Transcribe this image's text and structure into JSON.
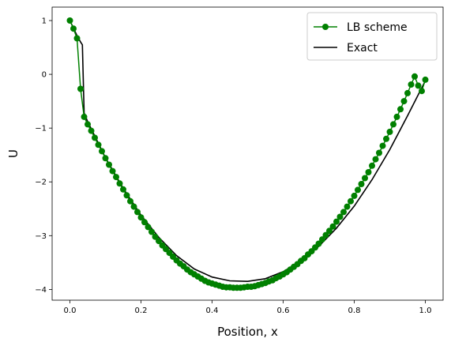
{
  "chart_data": {
    "type": "line",
    "xlabel": "Position, x",
    "ylabel": "U",
    "xlim": [
      -0.05,
      1.05
    ],
    "ylim": [
      -4.2,
      1.25
    ],
    "xticks": [
      0.0,
      0.2,
      0.4,
      0.6,
      0.8,
      1.0
    ],
    "xtick_labels": [
      "0.0",
      "0.2",
      "0.4",
      "0.6",
      "0.8",
      "1.0"
    ],
    "yticks": [
      1,
      0,
      -1,
      -2,
      -3,
      -4
    ],
    "ytick_labels": [
      "1",
      "0",
      "−1",
      "−2",
      "−3",
      "−4"
    ],
    "grid": false,
    "legend_position": "top-right",
    "series": [
      {
        "name": "LB scheme",
        "style": "line-with-circle-markers",
        "color": "#008000",
        "x": [
          0.0,
          0.01,
          0.02,
          0.03,
          0.04,
          0.05,
          0.06,
          0.07,
          0.08,
          0.09,
          0.1,
          0.11,
          0.12,
          0.13,
          0.14,
          0.15,
          0.16,
          0.17,
          0.18,
          0.19,
          0.2,
          0.21,
          0.22,
          0.23,
          0.24,
          0.25,
          0.26,
          0.27,
          0.28,
          0.29,
          0.3,
          0.31,
          0.32,
          0.33,
          0.34,
          0.35,
          0.36,
          0.37,
          0.38,
          0.39,
          0.4,
          0.41,
          0.42,
          0.43,
          0.44,
          0.45,
          0.46,
          0.47,
          0.48,
          0.49,
          0.5,
          0.51,
          0.52,
          0.53,
          0.54,
          0.55,
          0.56,
          0.57,
          0.58,
          0.59,
          0.6,
          0.61,
          0.62,
          0.63,
          0.64,
          0.65,
          0.66,
          0.67,
          0.68,
          0.69,
          0.7,
          0.71,
          0.72,
          0.73,
          0.74,
          0.75,
          0.76,
          0.77,
          0.78,
          0.79,
          0.8,
          0.81,
          0.82,
          0.83,
          0.84,
          0.85,
          0.86,
          0.87,
          0.88,
          0.89,
          0.9,
          0.91,
          0.92,
          0.93,
          0.94,
          0.95,
          0.96,
          0.97,
          0.98,
          0.99,
          1.0
        ],
        "y": [
          1.0,
          0.85,
          0.67,
          -0.27,
          -0.79,
          -0.93,
          -1.05,
          -1.18,
          -1.31,
          -1.43,
          -1.56,
          -1.68,
          -1.8,
          -1.91,
          -2.03,
          -2.14,
          -2.25,
          -2.36,
          -2.46,
          -2.56,
          -2.66,
          -2.75,
          -2.84,
          -2.93,
          -3.02,
          -3.1,
          -3.18,
          -3.25,
          -3.32,
          -3.39,
          -3.46,
          -3.52,
          -3.57,
          -3.63,
          -3.68,
          -3.72,
          -3.76,
          -3.8,
          -3.84,
          -3.87,
          -3.89,
          -3.91,
          -3.93,
          -3.95,
          -3.96,
          -3.96,
          -3.97,
          -3.97,
          -3.97,
          -3.96,
          -3.95,
          -3.95,
          -3.94,
          -3.92,
          -3.9,
          -3.88,
          -3.85,
          -3.83,
          -3.79,
          -3.76,
          -3.72,
          -3.68,
          -3.63,
          -3.58,
          -3.53,
          -3.47,
          -3.42,
          -3.35,
          -3.29,
          -3.22,
          -3.15,
          -3.07,
          -2.99,
          -2.91,
          -2.83,
          -2.74,
          -2.65,
          -2.56,
          -2.46,
          -2.36,
          -2.26,
          -2.15,
          -2.04,
          -1.93,
          -1.82,
          -1.7,
          -1.58,
          -1.46,
          -1.33,
          -1.2,
          -1.07,
          -0.93,
          -0.79,
          -0.65,
          -0.5,
          -0.35,
          -0.19,
          -0.04,
          -0.21,
          -0.31,
          -0.1
        ]
      },
      {
        "name": "Exact",
        "style": "line",
        "color": "#000000",
        "x": [
          0.0,
          0.02,
          0.03,
          0.035,
          0.04,
          0.05,
          0.1,
          0.15,
          0.2,
          0.25,
          0.3,
          0.35,
          0.4,
          0.45,
          0.5,
          0.55,
          0.6,
          0.65,
          0.7,
          0.75,
          0.8,
          0.85,
          0.9,
          0.95,
          1.0
        ],
        "y": [
          1.0,
          0.72,
          0.6,
          0.55,
          -0.72,
          -0.88,
          -1.55,
          -2.12,
          -2.62,
          -3.03,
          -3.37,
          -3.62,
          -3.77,
          -3.84,
          -3.85,
          -3.8,
          -3.67,
          -3.47,
          -3.2,
          -2.86,
          -2.45,
          -1.96,
          -1.4,
          -0.77,
          -0.12
        ]
      }
    ]
  }
}
